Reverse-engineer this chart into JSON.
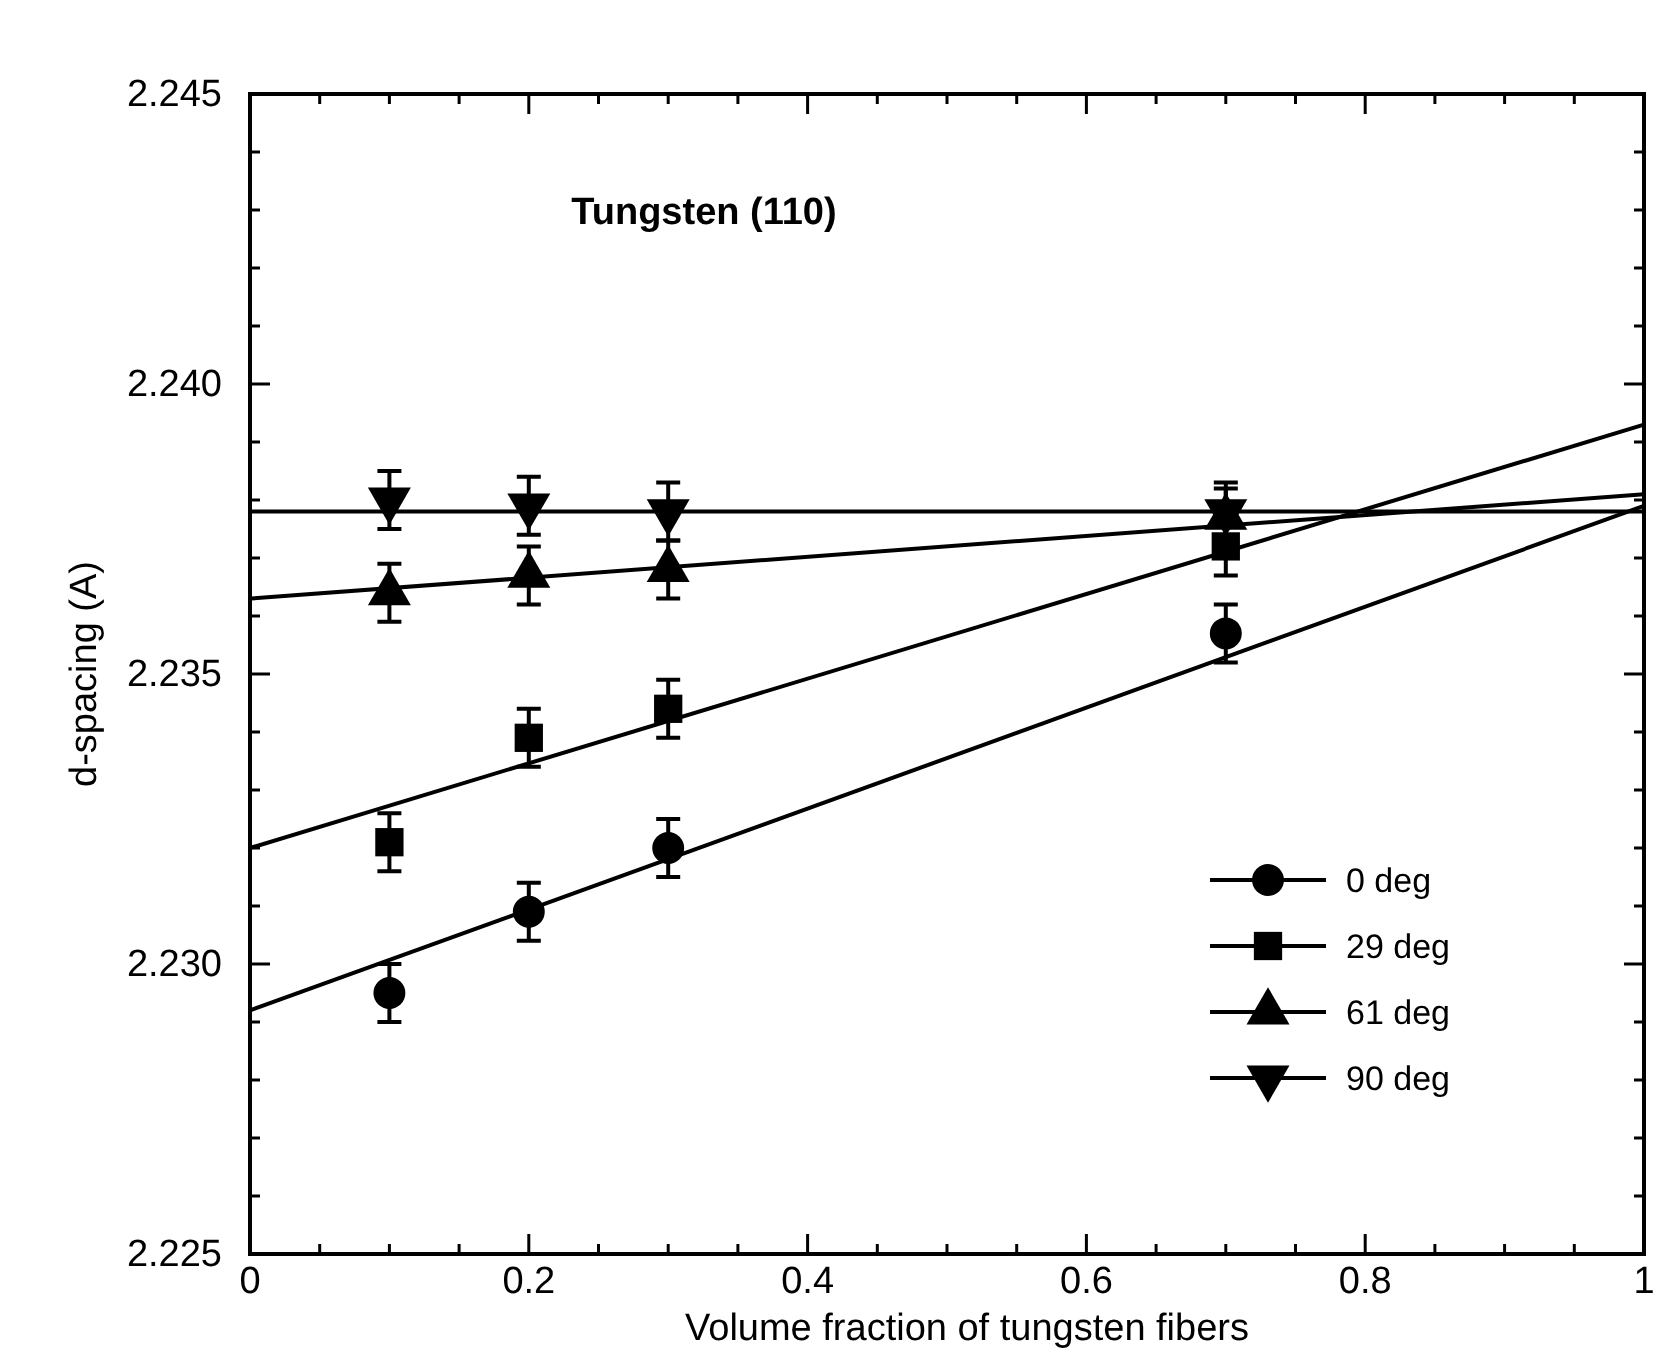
{
  "chart_data": {
    "type": "scatter",
    "title": "Tungsten (110)",
    "xlabel": "Volume fraction of tungsten fibers",
    "ylabel": "d-spacing (A)",
    "xlim": [
      0,
      1
    ],
    "ylim": [
      2.225,
      2.245
    ],
    "xticks": [
      0,
      {
        "value": 0.05,
        "label": null
      },
      {
        "value": 0.1,
        "label": null
      },
      {
        "value": 0.15,
        "label": null
      },
      0.2,
      {
        "value": 0.25,
        "label": null
      },
      {
        "value": 0.3,
        "label": null
      },
      {
        "value": 0.35,
        "label": null
      },
      0.4,
      {
        "value": 0.45,
        "label": null
      },
      {
        "value": 0.5,
        "label": null
      },
      {
        "value": 0.55,
        "label": null
      },
      0.6,
      {
        "value": 0.65,
        "label": null
      },
      {
        "value": 0.7,
        "label": null
      },
      {
        "value": 0.75,
        "label": null
      },
      0.8,
      {
        "value": 0.85,
        "label": null
      },
      {
        "value": 0.9,
        "label": null
      },
      {
        "value": 0.95,
        "label": null
      },
      1
    ],
    "yticks": [
      2.225,
      {
        "value": 2.226,
        "label": null
      },
      {
        "value": 2.227,
        "label": null
      },
      {
        "value": 2.228,
        "label": null
      },
      {
        "value": 2.229,
        "label": null
      },
      {
        "value": 2.23,
        "label": "2.230"
      },
      {
        "value": 2.231,
        "label": null
      },
      {
        "value": 2.232,
        "label": null
      },
      {
        "value": 2.233,
        "label": null
      },
      {
        "value": 2.234,
        "label": null
      },
      2.235,
      {
        "value": 2.236,
        "label": null
      },
      {
        "value": 2.237,
        "label": null
      },
      {
        "value": 2.238,
        "label": null
      },
      {
        "value": 2.239,
        "label": null
      },
      {
        "value": 2.24,
        "label": "2.240"
      },
      {
        "value": 2.241,
        "label": null
      },
      {
        "value": 2.242,
        "label": null
      },
      {
        "value": 2.243,
        "label": null
      },
      {
        "value": 2.244,
        "label": null
      },
      2.245
    ],
    "grid": false,
    "legend": "bottom right",
    "series": [
      {
        "name": "0 deg",
        "color": "#000000",
        "marker": "circle",
        "x": [
          0.1,
          0.2,
          0.3,
          0.7
        ],
        "values": [
          2.2295,
          2.2309,
          2.232,
          2.2357
        ],
        "errors": [
          0.0005,
          0.0005,
          0.0005,
          0.0005
        ]
      },
      {
        "name": "29 deg",
        "color": "#000000",
        "marker": "square",
        "x": [
          0.1,
          0.2,
          0.3,
          0.7
        ],
        "values": [
          2.2321,
          2.2339,
          2.2344,
          2.2372
        ],
        "errors": [
          0.0005,
          0.0005,
          0.0005,
          0.0005
        ]
      },
      {
        "name": "61 deg",
        "color": "#000000",
        "marker": "triangle",
        "x": [
          0.1,
          0.2,
          0.3,
          0.7
        ],
        "values": [
          2.2364,
          2.2367,
          2.2368,
          2.2377
        ],
        "errors": [
          0.0005,
          0.0005,
          0.0005,
          0.0005
        ]
      },
      {
        "name": "90 deg",
        "color": "#000000",
        "marker": "triangle-down",
        "x": [
          0.1,
          0.2,
          0.3,
          0.7
        ],
        "values": [
          2.238,
          2.2379,
          2.2378,
          2.2378
        ],
        "errors": [
          0.0005,
          0.0005,
          0.0005,
          0.0005
        ]
      },
      {
        "type": "line",
        "color": "#000000",
        "marker": "none",
        "x": [
          0,
          1
        ],
        "values": [
          2.2292,
          2.2379
        ]
      },
      {
        "type": "line",
        "color": "#000000",
        "marker": "none",
        "x": [
          0,
          1
        ],
        "values": [
          2.232,
          2.2393
        ]
      },
      {
        "type": "line",
        "color": "#000000",
        "marker": "none",
        "x": [
          0,
          1
        ],
        "values": [
          2.2363,
          2.2381
        ]
      },
      {
        "type": "line",
        "color": "#000000",
        "marker": "none",
        "x": [
          0,
          1
        ],
        "values": [
          2.2378,
          2.2378
        ]
      }
    ]
  }
}
